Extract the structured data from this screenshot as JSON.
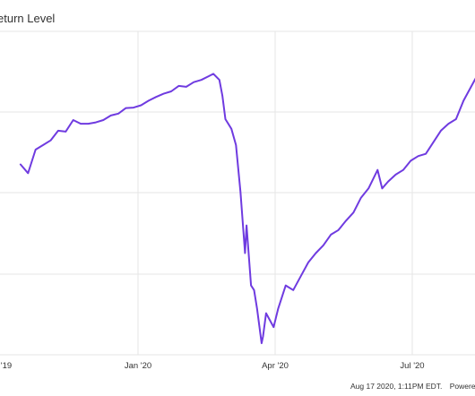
{
  "chart_data": {
    "type": "line",
    "title": "eturn Level",
    "x_tick_labels": [
      "'19",
      "Jan '20",
      "Apr '20",
      "Jul '20"
    ],
    "x": [
      "2019-10-15",
      "2019-10-20",
      "2019-10-25",
      "2019-10-30",
      "2019-11-04",
      "2019-11-09",
      "2019-11-14",
      "2019-11-19",
      "2019-11-24",
      "2019-11-29",
      "2019-12-04",
      "2019-12-09",
      "2019-12-14",
      "2019-12-19",
      "2019-12-24",
      "2019-12-29",
      "2020-01-03",
      "2020-01-08",
      "2020-01-13",
      "2020-01-18",
      "2020-01-23",
      "2020-01-28",
      "2020-02-02",
      "2020-02-07",
      "2020-02-12",
      "2020-02-17",
      "2020-02-20",
      "2020-02-24",
      "2020-02-26",
      "2020-02-28",
      "2020-03-03",
      "2020-03-06",
      "2020-03-09",
      "2020-03-12",
      "2020-03-13",
      "2020-03-16",
      "2020-03-18",
      "2020-03-20",
      "2020-03-23",
      "2020-03-24",
      "2020-03-26",
      "2020-03-31",
      "2020-04-03",
      "2020-04-08",
      "2020-04-13",
      "2020-04-18",
      "2020-04-23",
      "2020-04-28",
      "2020-05-03",
      "2020-05-08",
      "2020-05-13",
      "2020-05-18",
      "2020-05-23",
      "2020-05-28",
      "2020-06-02",
      "2020-06-08",
      "2020-06-11",
      "2020-06-15",
      "2020-06-20",
      "2020-06-25",
      "2020-06-30",
      "2020-07-05",
      "2020-07-10",
      "2020-07-15",
      "2020-07-20",
      "2020-07-25",
      "2020-07-30",
      "2020-08-04",
      "2020-08-09",
      "2020-08-14"
    ],
    "y": [
      0.912,
      0.893,
      0.944,
      0.954,
      0.964,
      0.985,
      0.983,
      1.008,
      1.0,
      1.0,
      1.003,
      1.008,
      1.018,
      1.022,
      1.034,
      1.035,
      1.04,
      1.05,
      1.058,
      1.065,
      1.07,
      1.082,
      1.08,
      1.09,
      1.095,
      1.103,
      1.108,
      1.095,
      1.06,
      1.01,
      0.989,
      0.954,
      0.853,
      0.72,
      0.78,
      0.65,
      0.64,
      0.6,
      0.525,
      0.54,
      0.59,
      0.56,
      0.6,
      0.65,
      0.64,
      0.67,
      0.7,
      0.72,
      0.737,
      0.76,
      0.77,
      0.79,
      0.808,
      0.84,
      0.86,
      0.9,
      0.86,
      0.875,
      0.89,
      0.9,
      0.92,
      0.93,
      0.935,
      0.96,
      0.985,
      1.0,
      1.01,
      1.05,
      1.08,
      1.11
    ],
    "grid": true,
    "legend": "none"
  },
  "footer": {
    "timestamp": "Aug 17 2020, 1:11PM EDT.",
    "powered": "Powered by"
  },
  "colors": {
    "line": "#6f3be0",
    "grid": "#e6e6e6",
    "text": "#333333"
  }
}
